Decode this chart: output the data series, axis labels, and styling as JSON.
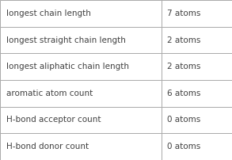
{
  "rows": [
    {
      "label": "longest chain length",
      "value": "7 atoms"
    },
    {
      "label": "longest straight chain length",
      "value": "2 atoms"
    },
    {
      "label": "longest aliphatic chain length",
      "value": "2 atoms"
    },
    {
      "label": "aromatic atom count",
      "value": "6 atoms"
    },
    {
      "label": "H-bond acceptor count",
      "value": "0 atoms"
    },
    {
      "label": "H-bond donor count",
      "value": "0 atoms"
    }
  ],
  "col_split": 0.695,
  "bg_color": "#ffffff",
  "border_color": "#aaaaaa",
  "text_color_label": "#404040",
  "text_color_value": "#404040",
  "font_size": 7.5,
  "fig_width": 2.93,
  "fig_height": 2.02,
  "dpi": 100
}
